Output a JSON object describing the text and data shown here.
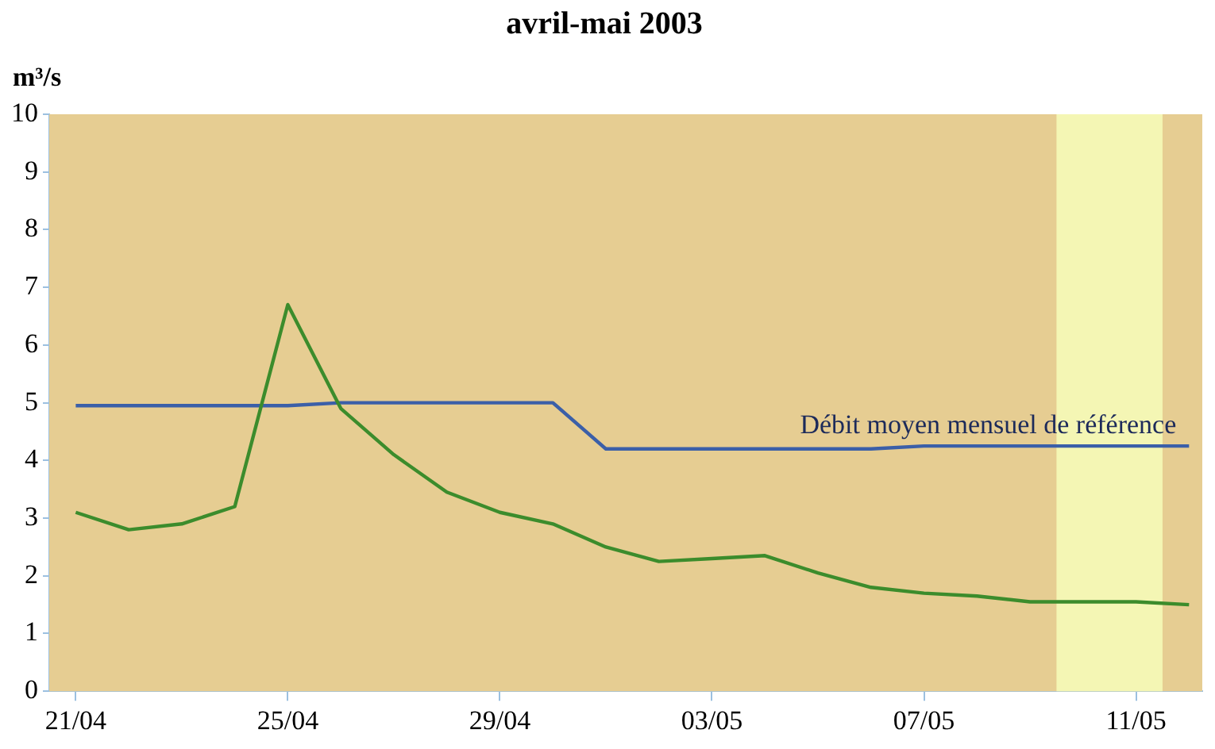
{
  "chart_data": {
    "type": "line",
    "title": "avril-mai 2003",
    "ylabel": "m³/s",
    "x": [
      "2003-04-21",
      "2003-04-22",
      "2003-04-23",
      "2003-04-24",
      "2003-04-25",
      "2003-04-26",
      "2003-04-27",
      "2003-04-28",
      "2003-04-29",
      "2003-04-30",
      "2003-05-01",
      "2003-05-02",
      "2003-05-03",
      "2003-05-04",
      "2003-05-05",
      "2003-05-06",
      "2003-05-07",
      "2003-05-08",
      "2003-05-09",
      "2003-05-10",
      "2003-05-11",
      "2003-05-12"
    ],
    "series": [
      {
        "color": "#3c8c2c",
        "values": [
          3.1,
          2.8,
          2.9,
          3.2,
          6.7,
          4.9,
          4.1,
          3.45,
          3.1,
          2.9,
          2.5,
          2.25,
          2.3,
          2.35,
          2.05,
          1.8,
          1.7,
          1.65,
          1.55,
          1.55,
          1.55,
          1.5
        ]
      },
      {
        "name": "Débit moyen mensuel de référence",
        "color": "#3b5fa8",
        "values": [
          4.95,
          4.95,
          4.95,
          4.95,
          4.95,
          5,
          5,
          5,
          5,
          5,
          4.2,
          4.2,
          4.2,
          4.2,
          4.2,
          4.2,
          4.25,
          4.25,
          4.25,
          4.25,
          4.25,
          4.25
        ]
      }
    ],
    "xlim": [
      "2003-04-20T12:00",
      "2003-05-12T06:00"
    ],
    "xticks": [
      {
        "value": "2003-04-21",
        "label": "21/04"
      },
      {
        "value": "2003-04-25",
        "label": "25/04"
      },
      {
        "value": "2003-04-29",
        "label": "29/04"
      },
      {
        "value": "2003-05-03",
        "label": "03/05"
      },
      {
        "value": "2003-05-07",
        "label": "07/05"
      },
      {
        "value": "2003-05-11",
        "label": "11/05"
      }
    ],
    "ylim": [
      0,
      10
    ],
    "yticks": [
      0,
      1,
      2,
      3,
      4,
      5,
      6,
      7,
      8,
      9,
      10
    ],
    "bands": [
      {
        "axis": "x",
        "from": "2003-05-09T12:00",
        "to": "2003-05-11T12:00",
        "color": "#f4f6b4"
      }
    ],
    "grid": false,
    "legend": false,
    "marker": "none",
    "line_style": "solid"
  }
}
